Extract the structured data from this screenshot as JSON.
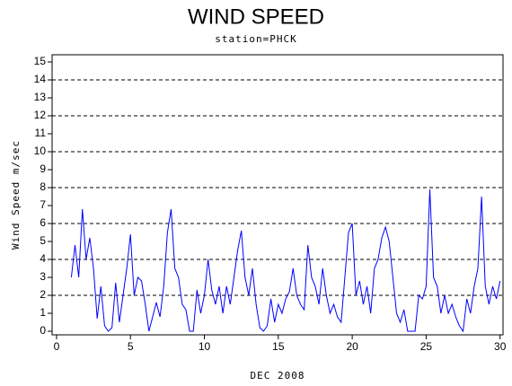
{
  "chart_data": {
    "type": "line",
    "title": "WIND SPEED",
    "subtitle": "station=PHCK",
    "x_label": "DEC 2008",
    "y_label": "Wind Speed m/sec",
    "xlim": [
      -0.3,
      30.2
    ],
    "xticks": [
      0,
      5,
      10,
      15,
      20,
      25,
      30
    ],
    "ylim": [
      -0.2,
      15.4
    ],
    "yticks": [
      0,
      1,
      2,
      3,
      4,
      5,
      6,
      7,
      8,
      9,
      10,
      11,
      12,
      13,
      14,
      15
    ],
    "grid": true,
    "x": [
      1,
      1.25,
      1.5,
      1.75,
      2,
      2.25,
      2.5,
      2.75,
      3,
      3.25,
      3.5,
      3.75,
      4,
      4.25,
      4.5,
      4.75,
      5,
      5.25,
      5.5,
      5.75,
      6,
      6.25,
      6.5,
      6.75,
      7,
      7.25,
      7.5,
      7.75,
      8,
      8.25,
      8.5,
      8.75,
      9,
      9.25,
      9.5,
      9.75,
      10,
      10.25,
      10.5,
      10.75,
      11,
      11.25,
      11.5,
      11.75,
      12,
      12.25,
      12.5,
      12.75,
      13,
      13.25,
      13.5,
      13.75,
      14,
      14.25,
      14.5,
      14.75,
      15,
      15.25,
      15.5,
      15.75,
      16,
      16.25,
      16.5,
      16.75,
      17,
      17.25,
      17.5,
      17.75,
      18,
      18.25,
      18.5,
      18.75,
      19,
      19.25,
      19.5,
      19.75,
      20,
      20.25,
      20.5,
      20.75,
      21,
      21.25,
      21.5,
      21.75,
      22,
      22.25,
      22.5,
      22.75,
      23,
      23.25,
      23.5,
      23.75,
      24,
      24.25,
      24.5,
      24.75,
      25,
      25.25,
      25.5,
      25.75,
      26,
      26.25,
      26.5,
      26.75,
      27,
      27.25,
      27.5,
      27.75,
      28,
      28.25,
      28.5,
      28.75,
      29,
      29.25,
      29.5,
      29.75,
      30
    ],
    "series": [
      {
        "name": "Wind Speed",
        "color": "#0000ff",
        "values": [
          3.0,
          4.8,
          3.0,
          6.8,
          4.0,
          5.2,
          3.5,
          0.7,
          2.5,
          0.3,
          0.0,
          0.2,
          2.7,
          0.5,
          2.0,
          3.5,
          5.4,
          2.0,
          3.0,
          2.8,
          1.5,
          0.0,
          0.8,
          1.6,
          0.8,
          2.5,
          5.5,
          6.8,
          3.5,
          3.0,
          1.5,
          1.2,
          0.0,
          0.0,
          2.3,
          1.0,
          2.0,
          4.0,
          2.3,
          1.5,
          2.5,
          1.0,
          2.5,
          1.5,
          3.0,
          4.5,
          5.6,
          3.0,
          2.0,
          3.5,
          1.5,
          0.2,
          0.0,
          0.3,
          1.8,
          0.5,
          1.5,
          1.0,
          1.8,
          2.2,
          3.5,
          2.0,
          1.5,
          1.2,
          4.8,
          3.0,
          2.5,
          1.5,
          3.5,
          2.0,
          1.0,
          1.5,
          0.8,
          0.5,
          3.0,
          5.5,
          6.0,
          2.0,
          2.8,
          1.5,
          2.5,
          1.0,
          3.5,
          4.0,
          5.2,
          5.8,
          5.0,
          3.0,
          1.0,
          0.5,
          1.2,
          0.0,
          0.0,
          0.0,
          2.0,
          1.8,
          2.5,
          7.9,
          3.0,
          2.5,
          1.0,
          2.0,
          1.0,
          1.5,
          0.8,
          0.3,
          0.0,
          1.8,
          1.0,
          2.5,
          3.5,
          7.5,
          2.5,
          1.5,
          2.5,
          1.8,
          2.8
        ]
      }
    ]
  }
}
